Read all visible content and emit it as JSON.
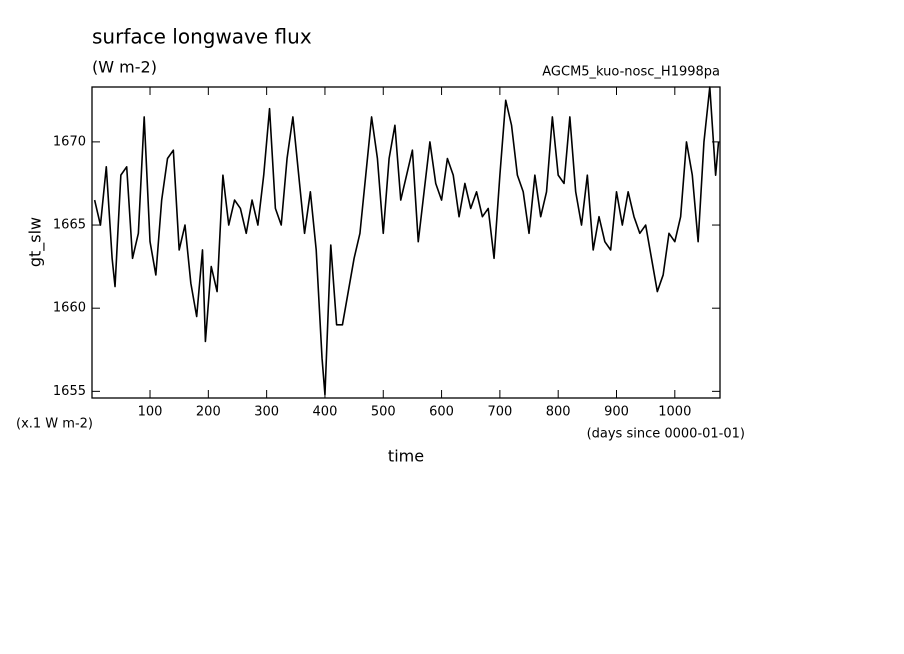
{
  "chart_data": {
    "type": "line",
    "title": "surface longwave flux",
    "subtitle": "(W m-2)",
    "annotation": "AGCM5_kuo-nosc_H1998pa",
    "ylabel": "gt_slw",
    "yunits": "(x.1 W m-2)",
    "xlabel": "time",
    "xunits": "(days since 0000-01-01)",
    "xlim": [
      0.5,
      1077.5
    ],
    "ylim": [
      1654.6,
      1673.3
    ],
    "xticks": [
      100,
      200,
      300,
      400,
      500,
      600,
      700,
      800,
      900,
      1000
    ],
    "yticks": [
      1655,
      1660,
      1665,
      1670
    ],
    "color": "#000000",
    "x": [
      5,
      15,
      25,
      35,
      40,
      50,
      60,
      70,
      80,
      90,
      100,
      110,
      120,
      130,
      140,
      150,
      160,
      170,
      180,
      190,
      195,
      205,
      215,
      225,
      235,
      245,
      255,
      265,
      275,
      285,
      295,
      305,
      315,
      325,
      335,
      345,
      355,
      365,
      375,
      385,
      395,
      400,
      410,
      420,
      430,
      440,
      450,
      460,
      470,
      480,
      490,
      500,
      510,
      520,
      530,
      540,
      550,
      560,
      570,
      580,
      590,
      600,
      610,
      620,
      630,
      640,
      650,
      660,
      670,
      680,
      690,
      700,
      710,
      720,
      730,
      740,
      750,
      760,
      770,
      780,
      790,
      800,
      810,
      820,
      830,
      840,
      850,
      860,
      870,
      880,
      890,
      900,
      910,
      920,
      930,
      940,
      950,
      960,
      970,
      980,
      990,
      1000,
      1010,
      1020,
      1030,
      1040,
      1050,
      1060,
      1070,
      1075
    ],
    "values": [
      1666.5,
      1665,
      1668.5,
      1663,
      1661.3,
      1668,
      1668.5,
      1663,
      1664.5,
      1671.5,
      1664,
      1662,
      1666.5,
      1669,
      1669.5,
      1663.5,
      1665,
      1661.5,
      1659.5,
      1663.5,
      1658,
      1662.5,
      1661,
      1668,
      1665,
      1666.5,
      1666,
      1664.5,
      1666.5,
      1665,
      1668,
      1672,
      1666,
      1665,
      1669,
      1671.5,
      1668,
      1664.5,
      1667,
      1663.5,
      1657,
      1654.8,
      1663.8,
      1659,
      1659,
      1661,
      1663,
      1664.5,
      1668,
      1671.5,
      1669,
      1664.5,
      1669,
      1671,
      1666.5,
      1668,
      1669.5,
      1664,
      1667,
      1670,
      1667.5,
      1666.5,
      1669,
      1668,
      1665.5,
      1667.5,
      1666,
      1667,
      1665.5,
      1666,
      1663,
      1668,
      1672.5,
      1671,
      1668,
      1667,
      1664.5,
      1668,
      1665.5,
      1667,
      1671.5,
      1668,
      1667.5,
      1671.5,
      1667,
      1665,
      1668,
      1663.5,
      1665.5,
      1664,
      1663.5,
      1667,
      1665,
      1667,
      1665.5,
      1664.5,
      1665,
      1663,
      1661,
      1662,
      1664.5,
      1664,
      1665.5,
      1670,
      1668,
      1664,
      1670,
      1673.3,
      1668,
      1670
    ]
  }
}
